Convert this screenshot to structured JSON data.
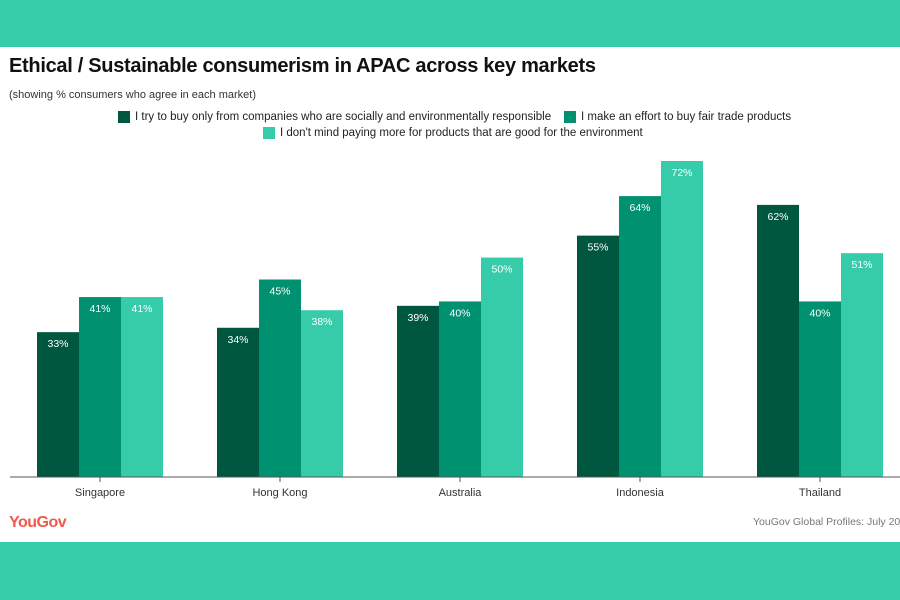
{
  "chart_data": {
    "type": "bar",
    "title": "Ethical / Sustainable consumerism in APAC across key markets",
    "subtitle": "(showing % consumers who agree in each market)",
    "categories": [
      "Singapore",
      "Hong Kong",
      "Australia",
      "Indonesia",
      "Thailand"
    ],
    "series": [
      {
        "name": "I try to buy only from companies who are socially and environmentally responsible",
        "color": "#00573f",
        "values": [
          33,
          34,
          39,
          55,
          62
        ]
      },
      {
        "name": "I make an effort to buy fair trade products",
        "color": "#009270",
        "values": [
          41,
          45,
          40,
          64,
          40
        ]
      },
      {
        "name": "I don't mind paying more for products that are good for the environment",
        "color": "#37cca9",
        "values": [
          41,
          38,
          50,
          72,
          51
        ]
      }
    ],
    "value_suffix": "%",
    "ylim": [
      0,
      72
    ],
    "grid": false,
    "legend_position": "top-center"
  },
  "footer": {
    "logo": "YouGov",
    "source": "YouGov Global Profiles: July 20"
  }
}
